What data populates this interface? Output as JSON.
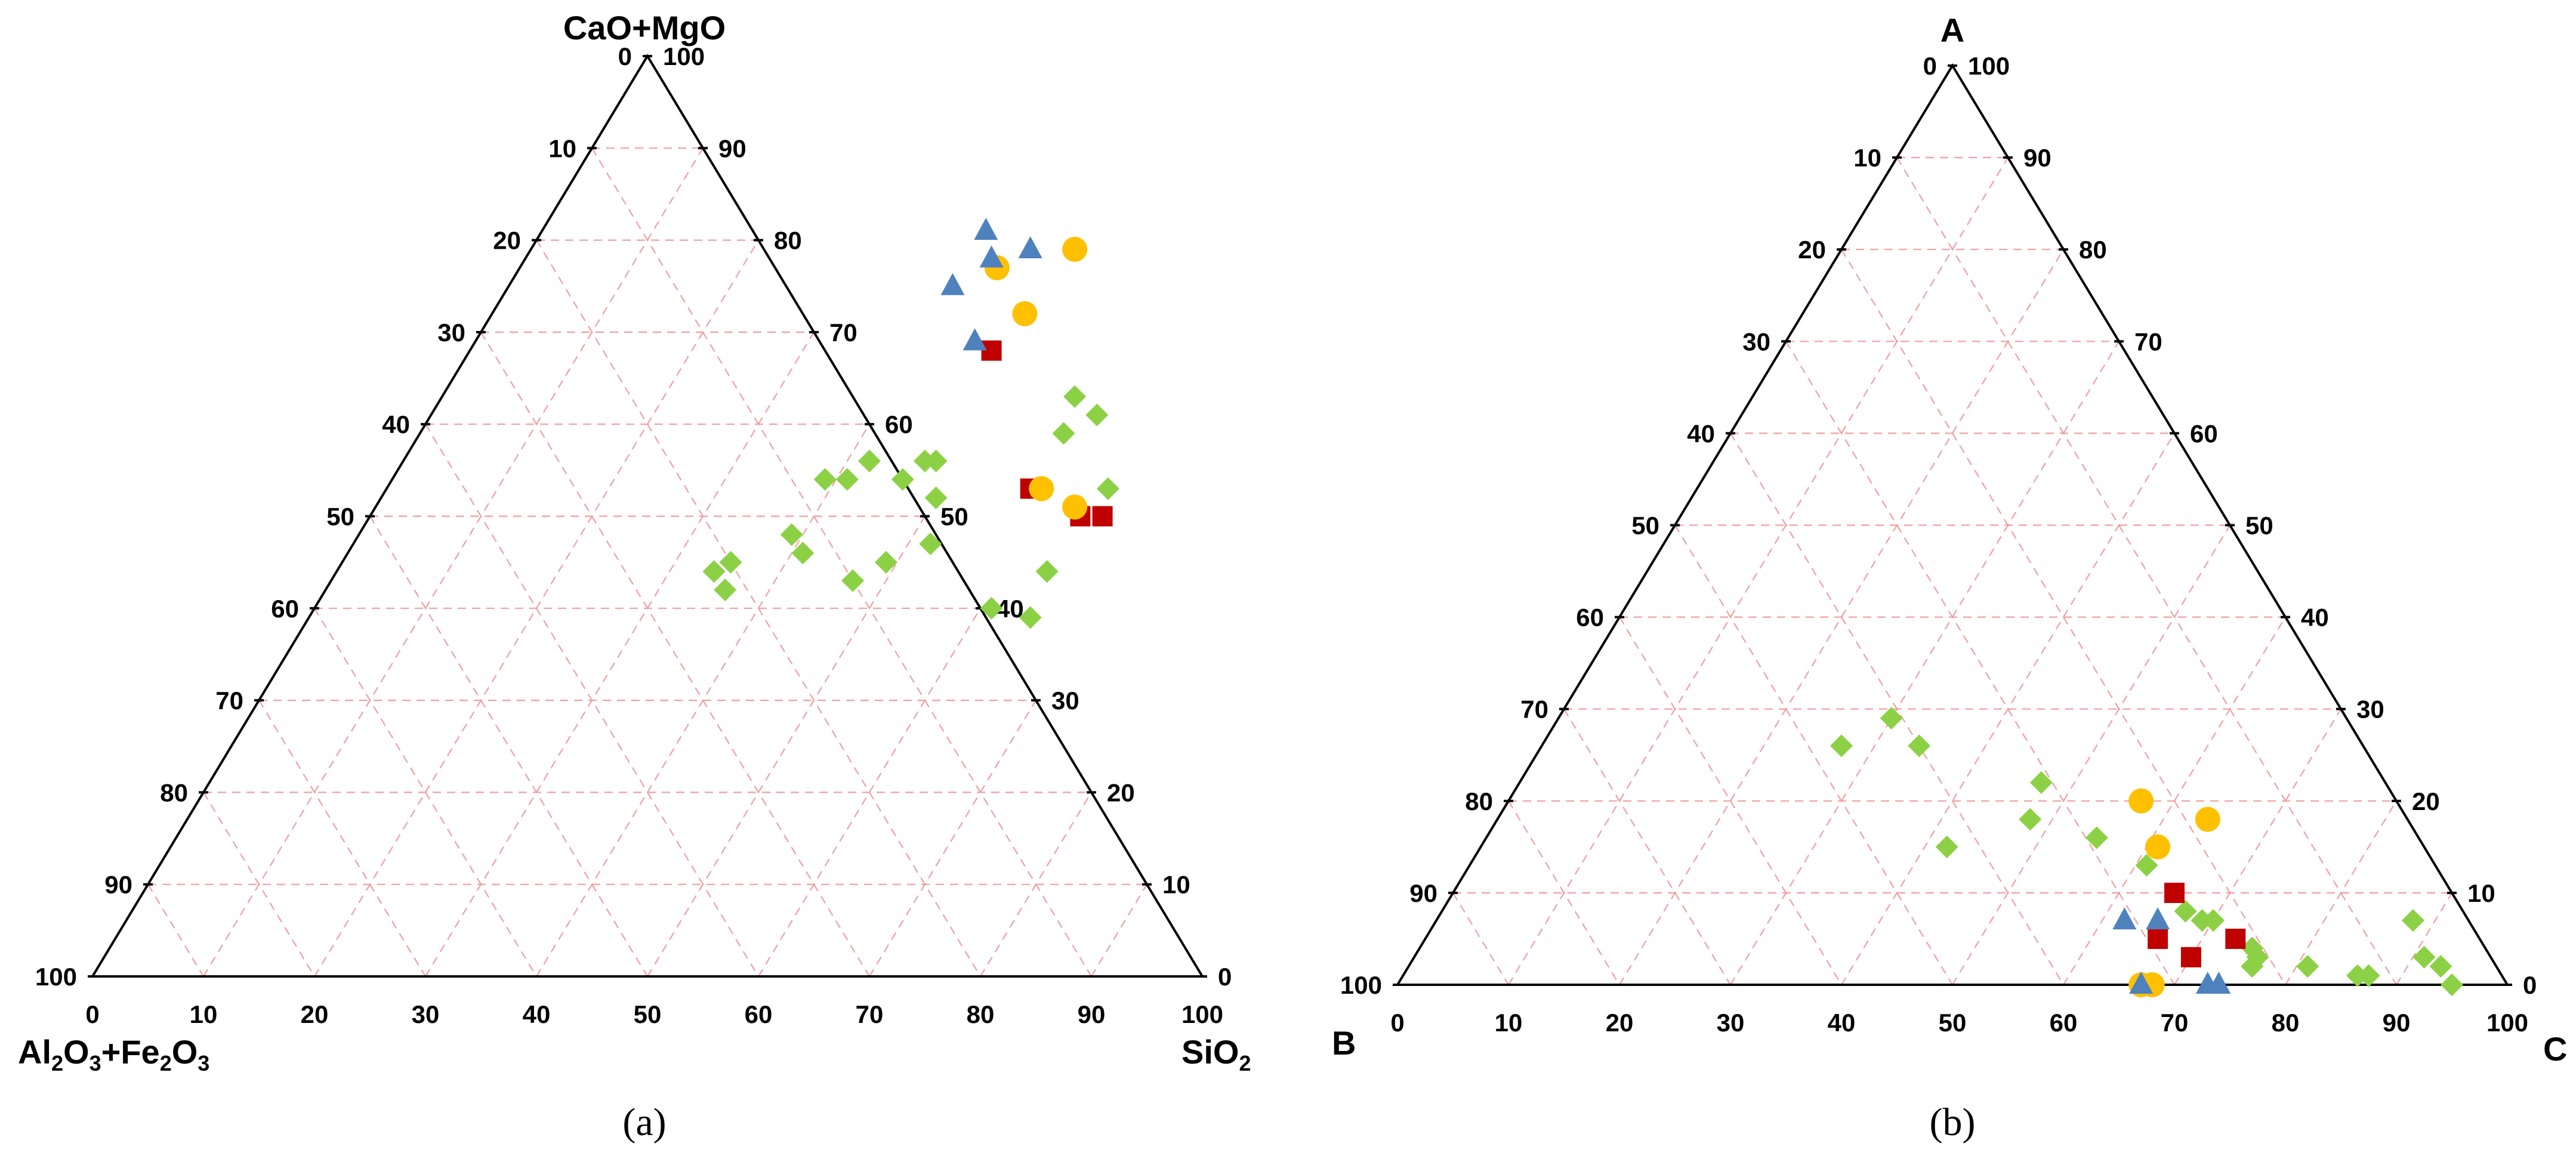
{
  "colors": {
    "diamond": "#8cd145",
    "square": "#c00000",
    "circle": "#ffc000",
    "triangle": "#4f81bd"
  },
  "chart_data": [
    {
      "type": "ternary-scatter",
      "caption": "(a)",
      "vertices": {
        "top": "CaO+MgO",
        "left_sub": [
          "Al",
          "2",
          "O",
          "3",
          "+Fe",
          "2",
          "O",
          "3"
        ],
        "right_sub": [
          "SiO",
          "2"
        ]
      },
      "ticks_top_left": [
        "0",
        "10",
        "20",
        "30",
        "40",
        "50",
        "60",
        "70",
        "80",
        "90",
        "100"
      ],
      "ticks_top_right": [
        "100",
        "90",
        "80",
        "70",
        "60",
        "50",
        "40",
        "30",
        "20",
        "10",
        "0"
      ],
      "ticks_bottom": [
        "0",
        "10",
        "20",
        "30",
        "40",
        "50",
        "60",
        "70",
        "80",
        "90",
        "100"
      ],
      "axis_range": [
        0,
        100
      ],
      "grid": true,
      "series": [
        {
          "name": "diamond",
          "marker": "diamond",
          "points": [
            [
              42,
              36
            ],
            [
              44,
              34
            ],
            [
              45,
              35
            ],
            [
              46,
              41
            ],
            [
              48,
              39
            ],
            [
              43,
              47
            ],
            [
              45,
              49
            ],
            [
              54,
              39
            ],
            [
              54,
              41
            ],
            [
              56,
              42
            ],
            [
              54,
              46
            ],
            [
              56,
              47
            ],
            [
              56,
              48
            ],
            [
              52,
              50
            ],
            [
              47,
              52
            ],
            [
              63,
              57
            ],
            [
              59,
              58
            ],
            [
              61,
              60
            ],
            [
              40,
              61
            ],
            [
              44,
              64
            ],
            [
              39,
              65
            ],
            [
              53,
              65
            ]
          ]
        },
        {
          "name": "square",
          "marker": "square",
          "points": [
            [
              50,
              64
            ],
            [
              50,
              66
            ],
            [
              53,
              58
            ],
            [
              68,
              47
            ]
          ]
        },
        {
          "name": "circle",
          "marker": "circle",
          "points": [
            [
              51,
              63
            ],
            [
              53,
              59
            ],
            [
              72,
              48
            ],
            [
              79,
              49
            ],
            [
              77,
              43
            ]
          ]
        },
        {
          "name": "triangle",
          "marker": "triangle",
          "points": [
            [
              69,
              45
            ],
            [
              79,
              45
            ],
            [
              78,
              42
            ],
            [
              75,
              40
            ],
            [
              81,
              40
            ]
          ]
        }
      ]
    },
    {
      "type": "ternary-scatter",
      "caption": "(b)",
      "vertices": {
        "top": "A",
        "left": "B",
        "right": "C"
      },
      "ticks_top_left": [
        "0",
        "10",
        "20",
        "30",
        "40",
        "50",
        "60",
        "70",
        "80",
        "90",
        "100"
      ],
      "ticks_top_right": [
        "100",
        "90",
        "80",
        "70",
        "60",
        "50",
        "40",
        "30",
        "20",
        "10",
        "0"
      ],
      "ticks_bottom": [
        "0",
        "10",
        "20",
        "30",
        "40",
        "50",
        "60",
        "70",
        "80",
        "90",
        "100"
      ],
      "axis_range": [
        0,
        100
      ],
      "grid": true,
      "series": [
        {
          "name": "diamond",
          "marker": "diamond",
          "points": [
            [
              29,
              30
            ],
            [
              26,
              27
            ],
            [
              26,
              34
            ],
            [
              15,
              42
            ],
            [
              18,
              48
            ],
            [
              22,
              47
            ],
            [
              16,
              55
            ],
            [
              13,
              61
            ],
            [
              8,
              67
            ],
            [
              7,
              69
            ],
            [
              7,
              70
            ],
            [
              4,
              75
            ],
            [
              3,
              76
            ],
            [
              2,
              76
            ],
            [
              2,
              81
            ],
            [
              2,
              81
            ],
            [
              1,
              86
            ],
            [
              1,
              87
            ],
            [
              7,
              88
            ],
            [
              3,
              91
            ],
            [
              2,
              93
            ],
            [
              0,
              95
            ]
          ]
        },
        {
          "name": "square",
          "marker": "square",
          "points": [
            [
              10,
              65
            ],
            [
              5,
              66
            ],
            [
              3,
              70
            ],
            [
              5,
              73
            ]
          ]
        },
        {
          "name": "circle",
          "marker": "circle",
          "points": [
            [
              20,
              57
            ],
            [
              18,
              64
            ],
            [
              15,
              61
            ],
            [
              0,
              67
            ],
            [
              0,
              68
            ]
          ]
        },
        {
          "name": "triangle",
          "marker": "triangle",
          "points": [
            [
              7,
              62
            ],
            [
              0,
              67
            ],
            [
              0,
              73
            ],
            [
              7,
              65
            ],
            [
              0,
              74
            ]
          ]
        }
      ]
    }
  ]
}
